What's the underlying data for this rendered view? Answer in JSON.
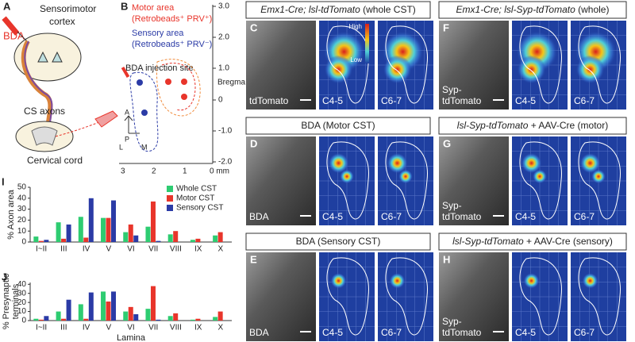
{
  "panel_a": {
    "letter": "A",
    "drug": "BDA",
    "region": [
      "Sensorimotor",
      "cortex"
    ],
    "axons": "CS axons",
    "cord": "Cervical cord"
  },
  "panel_b": {
    "letter": "B",
    "motor": "Motor area",
    "motor_note": "(Retrobeads⁺ PRV⁺)",
    "sensory": "Sensory area",
    "sensory_note": "(Retrobeads⁺ PRV⁻)",
    "injection": "BDA injection site",
    "y_ticks": [
      "3.0",
      "2.0",
      "1.0",
      "0",
      "-1.0",
      "-2.0"
    ],
    "bregma": "Bregma",
    "x_ticks": [
      "3",
      "2",
      "1",
      "0 mm"
    ],
    "compass": [
      "A",
      "P",
      "L",
      "M"
    ]
  },
  "panels": [
    {
      "letter": "C",
      "header": [
        {
          "text": "Emx1-Cre; lsl-tdTomato",
          "italic": true
        },
        {
          "text": " (whole CST)"
        }
      ],
      "labels": [
        "tdTomato"
      ],
      "levels": [
        "C4-5",
        "C6-7"
      ],
      "scale": [
        "High",
        "Low"
      ]
    },
    {
      "letter": "F",
      "header": [
        {
          "text": "Emx1-Cre; lsl-Syp-tdTomato",
          "italic": true
        },
        {
          "text": " (whole)"
        }
      ],
      "labels": [
        "Syp-",
        "tdTomato"
      ],
      "levels": [
        "C4-5",
        "C6-7"
      ]
    },
    {
      "letter": "D",
      "header": [
        {
          "text": "BDA (Motor CST)"
        }
      ],
      "labels": [
        "BDA"
      ],
      "levels": [
        "C4-5",
        "C6-7"
      ]
    },
    {
      "letter": "G",
      "header": [
        {
          "text": "lsl-Syp-tdTomato",
          "italic": true
        },
        {
          "text": " + AAV-Cre (motor)"
        }
      ],
      "labels": [
        "Syp-",
        "tdTomato"
      ],
      "levels": [
        "C4-5",
        "C6-7"
      ]
    },
    {
      "letter": "E",
      "header": [
        {
          "text": "BDA (Sensory CST)"
        }
      ],
      "labels": [
        "BDA"
      ],
      "levels": [
        "C4-5",
        "C6-7"
      ]
    },
    {
      "letter": "H",
      "header": [
        {
          "text": "lsl-Syp-tdTomato",
          "italic": true
        },
        {
          "text": " + AAV-Cre (sensory)"
        }
      ],
      "labels": [
        "Syp-",
        "tdTomato"
      ],
      "levels": [
        "C4-5",
        "C6-7"
      ]
    }
  ],
  "chart_data": [
    {
      "type": "bar",
      "label": "I",
      "ylabel": [
        "% Axon area"
      ],
      "categories": [
        "I~II",
        "III",
        "IV",
        "V",
        "VI",
        "VII",
        "VIII",
        "IX",
        "X"
      ],
      "series": [
        {
          "name": "Whole CST",
          "color": "#2ecc71",
          "values": [
            5,
            18,
            23,
            22,
            9,
            14,
            7,
            2,
            6
          ]
        },
        {
          "name": "Motor CST",
          "color": "#e8352b",
          "values": [
            1,
            3,
            4,
            22,
            16,
            37,
            10,
            3,
            9
          ]
        },
        {
          "name": "Sensory CST",
          "color": "#2b3ba6",
          "values": [
            2,
            16,
            40,
            38,
            6,
            1,
            0,
            0,
            0
          ]
        }
      ],
      "ylim": [
        0,
        50
      ],
      "yticks": [
        0,
        10,
        20,
        30,
        40,
        50
      ],
      "legend": "upper right"
    },
    {
      "type": "bar",
      "label": "J",
      "ylabel": [
        "% Presynaptic",
        "terminals"
      ],
      "xlabel": "Lamina",
      "categories": [
        "I~II",
        "III",
        "IV",
        "V",
        "VI",
        "VII",
        "VIII",
        "IX",
        "X"
      ],
      "series": [
        {
          "name": "Whole CST",
          "color": "#2ecc71",
          "values": [
            2,
            10,
            18,
            32,
            10,
            13,
            5,
            1,
            4
          ]
        },
        {
          "name": "Motor CST",
          "color": "#e8352b",
          "values": [
            1,
            2,
            2,
            21,
            15,
            38,
            8,
            2,
            10
          ]
        },
        {
          "name": "Sensory CST",
          "color": "#2b3ba6",
          "values": [
            5,
            23,
            31,
            32,
            7,
            1,
            0,
            0,
            0
          ]
        }
      ],
      "ylim": [
        0,
        42
      ],
      "yticks": [
        0,
        10,
        20,
        30,
        40
      ],
      "legend": false
    }
  ]
}
